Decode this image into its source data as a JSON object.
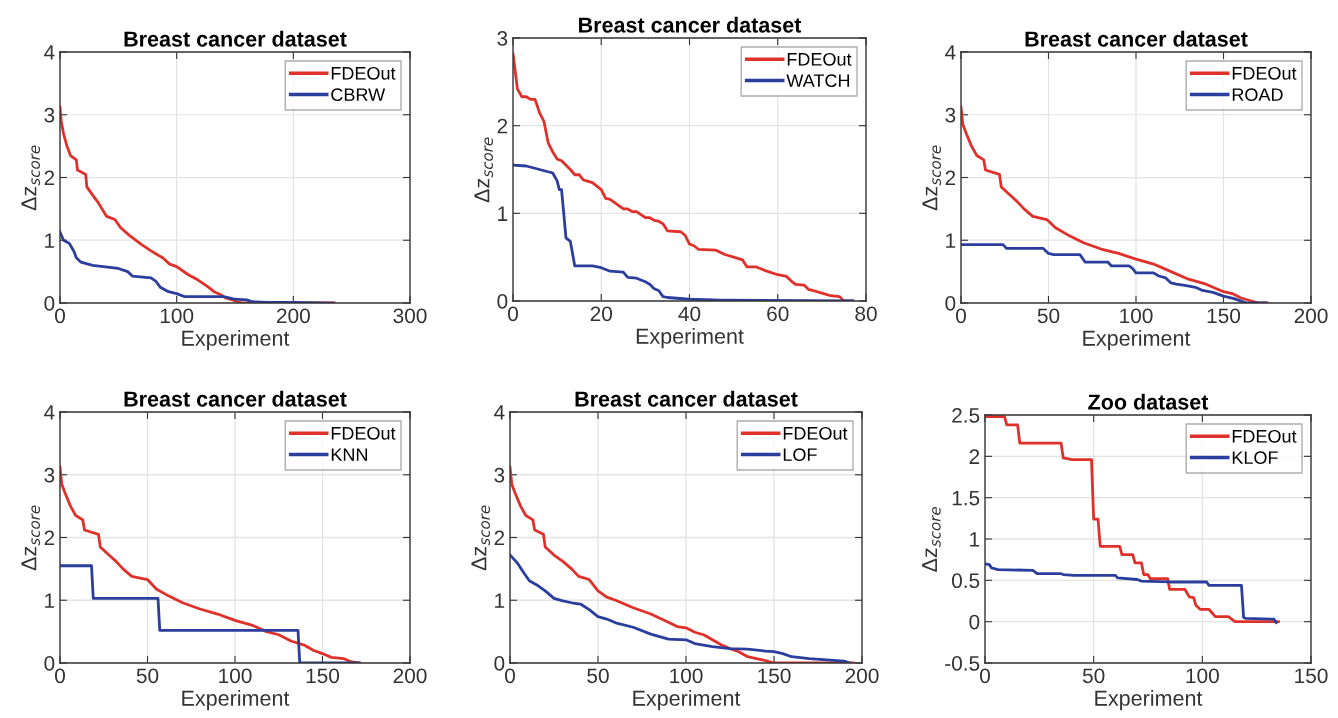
{
  "chart_data": [
    {
      "type": "line",
      "title": "Breast cancer dataset",
      "xlabel": "Experiment",
      "ylabel": "Δz$_{score}$",
      "xlim": [
        0,
        300
      ],
      "xticks": [
        0,
        100,
        200,
        300
      ],
      "ylim": [
        0,
        4
      ],
      "yticks": [
        0,
        1,
        2,
        3,
        4
      ],
      "grid": true,
      "legend": "top right",
      "series": [
        {
          "name": "FDEOut",
          "color": "#e0302a",
          "x": [
            0,
            1,
            3,
            6,
            9,
            14,
            15,
            22,
            23,
            28,
            32,
            36,
            40,
            47,
            52,
            60,
            70,
            78,
            88,
            94,
            100,
            110,
            118,
            126,
            132,
            138,
            142,
            148,
            152,
            157,
            235
          ],
          "values": [
            3.12,
            2.9,
            2.7,
            2.5,
            2.35,
            2.28,
            2.12,
            2.05,
            1.85,
            1.72,
            1.62,
            1.5,
            1.38,
            1.33,
            1.2,
            1.07,
            0.93,
            0.83,
            0.72,
            0.62,
            0.58,
            0.45,
            0.37,
            0.27,
            0.18,
            0.13,
            0.08,
            0.05,
            0.02,
            0,
            0
          ]
        },
        {
          "name": "CBRW",
          "color": "#2b3e9e",
          "x": [
            0,
            3,
            8,
            12,
            14,
            18,
            28,
            50,
            58,
            62,
            78,
            82,
            86,
            93,
            100,
            107,
            140,
            145,
            150,
            160,
            165,
            180,
            200,
            234
          ],
          "values": [
            1.13,
            1.0,
            0.95,
            0.82,
            0.72,
            0.65,
            0.6,
            0.55,
            0.5,
            0.43,
            0.4,
            0.35,
            0.25,
            0.18,
            0.15,
            0.1,
            0.1,
            0.08,
            0.06,
            0.05,
            0.02,
            0.01,
            0.01,
            0
          ]
        }
      ]
    },
    {
      "type": "line",
      "title": "Breast cancer dataset",
      "xlabel": "Experiment",
      "ylabel": "Δz$_{score}$",
      "xlim": [
        0,
        80
      ],
      "xticks": [
        0,
        20,
        40,
        60,
        80
      ],
      "ylim": [
        0,
        3
      ],
      "yticks": [
        0,
        1,
        2,
        3
      ],
      "grid": true,
      "legend": "top right",
      "series": [
        {
          "name": "FDEOut",
          "color": "#e0302a",
          "x": [
            0,
            1,
            2,
            3,
            4,
            5,
            6,
            7,
            8,
            9,
            10,
            11,
            13,
            14,
            15,
            16,
            18,
            20,
            21,
            22,
            25,
            26,
            27,
            28,
            30,
            31,
            32,
            33,
            34,
            35,
            38,
            39,
            40,
            41,
            42,
            46,
            48,
            50,
            52,
            53,
            55,
            57,
            60,
            62,
            63,
            64,
            66,
            67,
            68,
            70,
            72,
            74,
            75,
            77
          ],
          "values": [
            2.82,
            2.42,
            2.33,
            2.33,
            2.3,
            2.3,
            2.15,
            2.05,
            1.8,
            1.7,
            1.62,
            1.6,
            1.5,
            1.44,
            1.44,
            1.38,
            1.35,
            1.27,
            1.17,
            1.16,
            1.05,
            1.05,
            1.02,
            1.02,
            0.95,
            0.95,
            0.92,
            0.91,
            0.88,
            0.8,
            0.79,
            0.75,
            0.65,
            0.63,
            0.59,
            0.58,
            0.53,
            0.5,
            0.47,
            0.39,
            0.39,
            0.35,
            0.3,
            0.28,
            0.23,
            0.19,
            0.18,
            0.13,
            0.12,
            0.09,
            0.06,
            0.05,
            0,
            0
          ]
        },
        {
          "name": "WATCH",
          "color": "#2b3e9e",
          "x": [
            0,
            3,
            6,
            9,
            10,
            10.5,
            11,
            11.5,
            12,
            13,
            14,
            18,
            20,
            22,
            25,
            26,
            28,
            30,
            31,
            32,
            33,
            34,
            35,
            40,
            47,
            77
          ],
          "values": [
            1.55,
            1.54,
            1.5,
            1.46,
            1.37,
            1.27,
            1.27,
            1.0,
            0.72,
            0.68,
            0.4,
            0.4,
            0.38,
            0.34,
            0.33,
            0.27,
            0.26,
            0.22,
            0.19,
            0.14,
            0.12,
            0.05,
            0.04,
            0.02,
            0.01,
            0
          ]
        }
      ]
    },
    {
      "type": "line",
      "title": "Breast cancer dataset",
      "xlabel": "Experiment",
      "ylabel": "Δz$_{score}$",
      "xlim": [
        0,
        200
      ],
      "xticks": [
        0,
        50,
        100,
        150,
        200
      ],
      "ylim": [
        0,
        4
      ],
      "yticks": [
        0,
        1,
        2,
        3,
        4
      ],
      "grid": true,
      "legend": "top right",
      "series": [
        {
          "name": "FDEOut",
          "color": "#e0302a",
          "x": [
            0,
            1,
            3,
            6,
            9,
            13,
            14,
            22,
            23,
            28,
            32,
            36,
            41,
            49,
            54,
            62,
            70,
            80,
            90,
            100,
            110,
            120,
            130,
            140,
            150,
            155,
            160,
            165,
            170,
            175
          ],
          "values": [
            3.12,
            2.85,
            2.7,
            2.5,
            2.35,
            2.28,
            2.12,
            2.05,
            1.85,
            1.72,
            1.62,
            1.5,
            1.38,
            1.33,
            1.2,
            1.07,
            0.96,
            0.86,
            0.79,
            0.7,
            0.62,
            0.5,
            0.38,
            0.3,
            0.18,
            0.15,
            0.08,
            0.04,
            0,
            0
          ]
        },
        {
          "name": "ROAD",
          "color": "#2b3e9e",
          "x": [
            0,
            24,
            26,
            47,
            50,
            53,
            68,
            71,
            84,
            86,
            96,
            98,
            100,
            110,
            113,
            117,
            120,
            123,
            128,
            134,
            138,
            144,
            150,
            156,
            162,
            164,
            174
          ],
          "values": [
            0.93,
            0.93,
            0.87,
            0.87,
            0.79,
            0.77,
            0.77,
            0.65,
            0.65,
            0.59,
            0.59,
            0.55,
            0.48,
            0.48,
            0.43,
            0.4,
            0.32,
            0.3,
            0.28,
            0.25,
            0.2,
            0.17,
            0.11,
            0.07,
            0.01,
            0,
            0
          ]
        }
      ]
    },
    {
      "type": "line",
      "title": "Breast cancer dataset",
      "xlabel": "Experiment",
      "ylabel": "Δz$_{score}$",
      "xlim": [
        0,
        200
      ],
      "xticks": [
        0,
        50,
        100,
        150,
        200
      ],
      "ylim": [
        0,
        4
      ],
      "yticks": [
        0,
        1,
        2,
        3,
        4
      ],
      "grid": true,
      "legend": "top right",
      "series": [
        {
          "name": "FDEOut",
          "color": "#e0302a",
          "x": [
            0,
            1,
            3,
            6,
            9,
            13,
            14,
            22,
            23,
            28,
            32,
            36,
            41,
            50,
            55,
            62,
            70,
            80,
            90,
            100,
            110,
            118,
            125,
            132,
            140,
            145,
            150,
            155,
            162,
            166,
            171
          ],
          "values": [
            3.12,
            2.85,
            2.7,
            2.5,
            2.35,
            2.28,
            2.12,
            2.05,
            1.85,
            1.72,
            1.62,
            1.5,
            1.38,
            1.33,
            1.18,
            1.07,
            0.96,
            0.86,
            0.78,
            0.68,
            0.6,
            0.5,
            0.45,
            0.35,
            0.28,
            0.2,
            0.15,
            0.09,
            0.07,
            0.02,
            0
          ]
        },
        {
          "name": "KNN",
          "color": "#2b3e9e",
          "x": [
            0,
            18,
            19,
            56,
            57,
            136,
            137,
            171
          ],
          "values": [
            1.55,
            1.55,
            1.03,
            1.03,
            0.52,
            0.52,
            0,
            0
          ]
        }
      ]
    },
    {
      "type": "line",
      "title": "Breast cancer dataset",
      "xlabel": "Experiment",
      "ylabel": "Δz$_{score}$",
      "xlim": [
        0,
        200
      ],
      "xticks": [
        0,
        50,
        100,
        150,
        200
      ],
      "ylim": [
        0,
        4
      ],
      "yticks": [
        0,
        1,
        2,
        3,
        4
      ],
      "grid": true,
      "legend": "top right",
      "series": [
        {
          "name": "FDEOut",
          "color": "#e0302a",
          "x": [
            0,
            1,
            3,
            6,
            9,
            13,
            14,
            19,
            20,
            25,
            30,
            35,
            39,
            45,
            50,
            55,
            60,
            70,
            80,
            90,
            95,
            100,
            105,
            110,
            115,
            120,
            125,
            130,
            135,
            140,
            145,
            150,
            195
          ],
          "values": [
            3.12,
            2.85,
            2.7,
            2.5,
            2.35,
            2.28,
            2.12,
            2.05,
            1.85,
            1.72,
            1.62,
            1.5,
            1.38,
            1.33,
            1.15,
            1.05,
            1.0,
            0.88,
            0.78,
            0.65,
            0.58,
            0.56,
            0.49,
            0.45,
            0.37,
            0.29,
            0.23,
            0.18,
            0.1,
            0.07,
            0.04,
            0,
            0
          ]
        },
        {
          "name": "LOF",
          "color": "#2b3e9e",
          "x": [
            0,
            4,
            8,
            11,
            16,
            20,
            25,
            30,
            35,
            40,
            45,
            50,
            55,
            60,
            70,
            80,
            90,
            100,
            105,
            115,
            125,
            135,
            145,
            150,
            155,
            160,
            170,
            180,
            190,
            193
          ],
          "values": [
            1.72,
            1.6,
            1.43,
            1.31,
            1.23,
            1.15,
            1.03,
            0.99,
            0.96,
            0.94,
            0.85,
            0.74,
            0.7,
            0.64,
            0.57,
            0.46,
            0.38,
            0.37,
            0.31,
            0.26,
            0.23,
            0.22,
            0.19,
            0.18,
            0.15,
            0.1,
            0.07,
            0.05,
            0.03,
            0
          ]
        }
      ]
    },
    {
      "type": "line",
      "title": "Zoo dataset",
      "xlabel": "Experiment",
      "ylabel": "Δz$_{score}$",
      "xlim": [
        0,
        150
      ],
      "xticks": [
        0,
        50,
        100,
        150
      ],
      "ylim": [
        -0.5,
        2.5
      ],
      "yticks": [
        {
          "value": -0.5,
          "label": "-0.5"
        },
        0,
        0.5,
        1,
        1.5,
        2,
        2.5
      ],
      "grid": true,
      "legend": "top right",
      "series": [
        {
          "name": "FDEOut",
          "color": "#e0302a",
          "x": [
            0,
            9,
            10,
            15,
            16,
            35,
            36,
            40,
            49,
            50,
            52,
            53,
            62,
            63,
            68,
            69,
            72,
            73,
            75,
            76,
            84,
            85,
            92,
            94,
            96,
            97,
            99,
            103,
            106,
            112,
            115,
            135
          ],
          "values": [
            2.48,
            2.48,
            2.38,
            2.38,
            2.16,
            2.16,
            1.98,
            1.96,
            1.96,
            1.24,
            1.24,
            0.91,
            0.91,
            0.81,
            0.81,
            0.71,
            0.71,
            0.57,
            0.57,
            0.52,
            0.52,
            0.39,
            0.39,
            0.3,
            0.29,
            0.2,
            0.15,
            0.15,
            0.06,
            0.06,
            0,
            0
          ]
        },
        {
          "name": "KLOF",
          "color": "#2b3e9e",
          "x": [
            0,
            2,
            3,
            6,
            22,
            24,
            35,
            36,
            41,
            60,
            61,
            70,
            72,
            85,
            102,
            103,
            118,
            119,
            120,
            133,
            134
          ],
          "values": [
            0.7,
            0.69,
            0.65,
            0.63,
            0.62,
            0.58,
            0.58,
            0.57,
            0.56,
            0.56,
            0.53,
            0.51,
            0.49,
            0.48,
            0.48,
            0.44,
            0.44,
            0.05,
            0.04,
            0.03,
            -0.01
          ]
        }
      ]
    }
  ]
}
